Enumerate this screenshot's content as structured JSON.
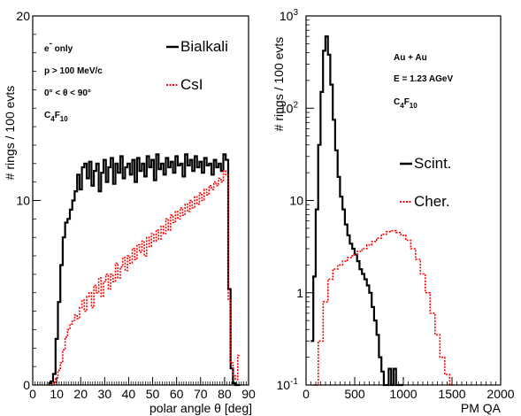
{
  "chart_data": [
    {
      "type": "line",
      "xlabel": "polar angle θ [deg]",
      "ylabel": "# rings / 100 evts",
      "xlim": [
        0,
        90
      ],
      "ylim": [
        0,
        20
      ],
      "x_ticks": [
        "0",
        "10",
        "20",
        "30",
        "40",
        "50",
        "60",
        "70",
        "80",
        "90"
      ],
      "y_ticks": [
        "0",
        "10",
        "20"
      ],
      "annotations": [
        "e- only",
        "p > 100 MeV/c",
        "0° < θ < 90°",
        "C4F10"
      ],
      "legend_position": "top-right",
      "series": [
        {
          "name": "Bialkali",
          "color": "#000000",
          "style": "solid-step",
          "x": [
            7,
            8,
            9,
            10,
            11,
            12,
            13,
            14,
            15,
            16,
            17,
            18,
            19,
            20,
            21,
            22,
            23,
            24,
            25,
            26,
            27,
            28,
            29,
            30,
            31,
            32,
            33,
            34,
            35,
            36,
            37,
            38,
            39,
            40,
            41,
            42,
            43,
            44,
            45,
            46,
            47,
            48,
            49,
            50,
            51,
            52,
            53,
            54,
            55,
            56,
            57,
            58,
            59,
            60,
            61,
            62,
            63,
            64,
            65,
            66,
            67,
            68,
            69,
            70,
            71,
            72,
            73,
            74,
            75,
            76,
            77,
            78,
            79,
            80,
            81,
            82,
            83,
            84,
            85,
            86
          ],
          "y": [
            0.1,
            0.2,
            0.6,
            2.5,
            4.5,
            6.5,
            8.0,
            8.8,
            9.0,
            9.5,
            10.0,
            10.5,
            11.4,
            10.6,
            11.8,
            12.0,
            11.2,
            12.1,
            10.8,
            11.6,
            12.0,
            10.5,
            11.5,
            12.2,
            11.0,
            11.8,
            12.3,
            10.9,
            12.0,
            11.5,
            12.4,
            11.2,
            11.8,
            12.0,
            11.4,
            12.2,
            11.0,
            12.3,
            11.6,
            12.0,
            11.3,
            12.4,
            11.8,
            12.2,
            11.1,
            12.5,
            11.7,
            12.0,
            11.4,
            12.3,
            11.8,
            12.1,
            11.5,
            12.4,
            11.9,
            12.0,
            11.3,
            12.5,
            11.9,
            12.2,
            11.6,
            12.4,
            11.8,
            12.1,
            11.5,
            12.3,
            11.9,
            12.0,
            11.4,
            12.2,
            11.8,
            12.0,
            11.6,
            12.5,
            12.2,
            5.2,
            0.9,
            0.1,
            0.0,
            0.0
          ]
        },
        {
          "name": "CsI",
          "color": "#ff0000",
          "style": "dotted-step",
          "x": [
            7,
            8,
            9,
            10,
            11,
            12,
            13,
            14,
            15,
            16,
            17,
            18,
            19,
            20,
            21,
            22,
            23,
            24,
            25,
            26,
            27,
            28,
            29,
            30,
            31,
            32,
            33,
            34,
            35,
            36,
            37,
            38,
            39,
            40,
            41,
            42,
            43,
            44,
            45,
            46,
            47,
            48,
            49,
            50,
            51,
            52,
            53,
            54,
            55,
            56,
            57,
            58,
            59,
            60,
            61,
            62,
            63,
            64,
            65,
            66,
            67,
            68,
            69,
            70,
            71,
            72,
            73,
            74,
            75,
            76,
            77,
            78,
            79,
            80,
            81,
            82,
            83,
            84,
            85,
            86
          ],
          "y": [
            0.0,
            0.0,
            0.1,
            0.4,
            0.8,
            1.2,
            1.9,
            2.6,
            3.0,
            3.3,
            3.5,
            3.8,
            3.6,
            4.2,
            4.6,
            4.0,
            4.8,
            5.0,
            4.2,
            5.4,
            5.0,
            5.8,
            4.8,
            5.6,
            6.0,
            5.2,
            6.0,
            5.6,
            6.6,
            5.8,
            6.4,
            6.9,
            6.2,
            7.0,
            6.6,
            7.4,
            6.8,
            7.6,
            7.2,
            7.8,
            7.0,
            8.0,
            7.5,
            8.2,
            7.8,
            8.4,
            7.9,
            8.6,
            8.2,
            9.0,
            8.4,
            9.2,
            8.8,
            9.4,
            9.0,
            9.6,
            9.2,
            9.8,
            9.4,
            10.0,
            9.6,
            10.2,
            9.8,
            10.4,
            10.0,
            10.6,
            10.3,
            10.8,
            10.6,
            11.0,
            10.8,
            11.2,
            11.0,
            11.6,
            11.4,
            4.6,
            1.2,
            0.5,
            0.3,
            1.6
          ]
        }
      ]
    },
    {
      "type": "line",
      "xlabel": "PM QA",
      "ylabel": "# rings / 100 evts",
      "xlim": [
        0,
        2000
      ],
      "ylim": [
        0.1,
        1000
      ],
      "y_scale": "log",
      "x_ticks": [
        "0",
        "500",
        "1000",
        "1500",
        "2000"
      ],
      "y_ticks": [
        {
          "base": "10",
          "exp": "-1"
        },
        {
          "base": "1",
          "exp": ""
        },
        {
          "base": "10",
          "exp": ""
        },
        {
          "base": "10",
          "exp": "2"
        },
        {
          "base": "10",
          "exp": "3"
        }
      ],
      "annotations": [
        "Au + Au",
        "E = 1.23 AGeV",
        "C4F10"
      ],
      "legend_position": "right",
      "series": [
        {
          "name": "Scint.",
          "color": "#000000",
          "style": "solid-step",
          "x": [
            62,
            87,
            112,
            137,
            162,
            187,
            212,
            237,
            262,
            287,
            312,
            337,
            362,
            387,
            412,
            437,
            462,
            487,
            512,
            537,
            562,
            587,
            612,
            637,
            662,
            687,
            712,
            737,
            762,
            787,
            812,
            837,
            862,
            887,
            912,
            937,
            962,
            987
          ],
          "y": [
            0.3,
            1.5,
            8,
            40,
            150,
            420,
            600,
            380,
            180,
            75,
            35,
            18,
            11,
            8,
            5.5,
            4.2,
            3.4,
            3.0,
            2.6,
            2.2,
            1.8,
            1.6,
            1.4,
            1.2,
            1.0,
            0.7,
            0.5,
            0.35,
            0.2,
            0.14,
            0.1,
            0.1,
            0.15,
            0.1,
            0.15,
            0.1,
            0.1,
            0.1
          ]
        },
        {
          "name": "Cher.",
          "color": "#ff0000",
          "style": "dotted-step",
          "x": [
            100,
            150,
            200,
            250,
            300,
            350,
            400,
            450,
            500,
            550,
            600,
            650,
            700,
            750,
            800,
            850,
            900,
            950,
            1000,
            1050,
            1100,
            1150,
            1200,
            1250,
            1300,
            1350,
            1400,
            1450,
            1500
          ],
          "y": [
            0.1,
            0.3,
            0.8,
            1.4,
            1.8,
            2.0,
            2.2,
            2.4,
            2.6,
            2.8,
            3.0,
            3.3,
            3.6,
            3.9,
            4.3,
            4.6,
            4.7,
            4.5,
            4.2,
            3.7,
            3.0,
            2.3,
            1.6,
            1.0,
            0.6,
            0.35,
            0.2,
            0.13,
            0.1
          ]
        }
      ]
    }
  ]
}
